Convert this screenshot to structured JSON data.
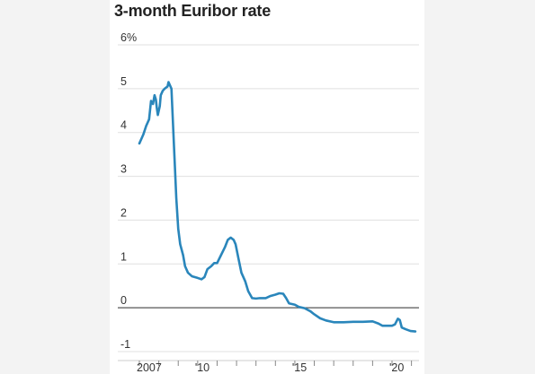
{
  "chart_data": {
    "type": "line",
    "title": "3-month Euribor rate",
    "xlabel": "",
    "ylabel": "",
    "x_ticks": [
      {
        "year": 2007,
        "label": "2007"
      },
      {
        "year": 2010,
        "label": "'10"
      },
      {
        "year": 2015,
        "label": "'15"
      },
      {
        "year": 2020,
        "label": "'20"
      }
    ],
    "y_ticks": [
      {
        "value": 6,
        "label": "6%"
      },
      {
        "value": 5,
        "label": "5"
      },
      {
        "value": 4,
        "label": "4"
      },
      {
        "value": 3,
        "label": "3"
      },
      {
        "value": 2,
        "label": "2"
      },
      {
        "value": 1,
        "label": "1"
      },
      {
        "value": 0,
        "label": "0"
      },
      {
        "value": -1,
        "label": "-1"
      }
    ],
    "xlim": [
      2006.9,
      2021.4
    ],
    "ylim": [
      -1,
      6
    ],
    "grid": true,
    "legend": "none",
    "colors": {
      "line": "#2a86bb",
      "grid": "#e0e0e0",
      "zero": "#555555"
    },
    "series": [
      {
        "points": [
          [
            2007.0,
            3.75
          ],
          [
            2007.2,
            3.95
          ],
          [
            2007.35,
            4.15
          ],
          [
            2007.5,
            4.3
          ],
          [
            2007.6,
            4.72
          ],
          [
            2007.7,
            4.65
          ],
          [
            2007.78,
            4.85
          ],
          [
            2007.85,
            4.75
          ],
          [
            2007.9,
            4.55
          ],
          [
            2007.95,
            4.4
          ],
          [
            2008.05,
            4.6
          ],
          [
            2008.1,
            4.85
          ],
          [
            2008.2,
            4.95
          ],
          [
            2008.3,
            5.0
          ],
          [
            2008.45,
            5.05
          ],
          [
            2008.5,
            5.15
          ],
          [
            2008.65,
            5.0
          ],
          [
            2008.7,
            4.5
          ],
          [
            2008.8,
            3.5
          ],
          [
            2008.9,
            2.5
          ],
          [
            2009.0,
            1.8
          ],
          [
            2009.1,
            1.45
          ],
          [
            2009.25,
            1.2
          ],
          [
            2009.35,
            0.95
          ],
          [
            2009.5,
            0.8
          ],
          [
            2009.7,
            0.72
          ],
          [
            2010.0,
            0.68
          ],
          [
            2010.2,
            0.65
          ],
          [
            2010.35,
            0.7
          ],
          [
            2010.5,
            0.88
          ],
          [
            2010.7,
            0.95
          ],
          [
            2010.85,
            1.02
          ],
          [
            2011.0,
            1.02
          ],
          [
            2011.2,
            1.2
          ],
          [
            2011.4,
            1.38
          ],
          [
            2011.55,
            1.55
          ],
          [
            2011.7,
            1.6
          ],
          [
            2011.85,
            1.55
          ],
          [
            2011.95,
            1.45
          ],
          [
            2012.1,
            1.12
          ],
          [
            2012.25,
            0.8
          ],
          [
            2012.45,
            0.6
          ],
          [
            2012.6,
            0.38
          ],
          [
            2012.8,
            0.22
          ],
          [
            2013.0,
            0.21
          ],
          [
            2013.2,
            0.22
          ],
          [
            2013.5,
            0.22
          ],
          [
            2013.75,
            0.27
          ],
          [
            2014.0,
            0.3
          ],
          [
            2014.2,
            0.33
          ],
          [
            2014.4,
            0.32
          ],
          [
            2014.55,
            0.22
          ],
          [
            2014.7,
            0.1
          ],
          [
            2014.9,
            0.08
          ],
          [
            2015.0,
            0.07
          ],
          [
            2015.2,
            0.02
          ],
          [
            2015.5,
            -0.01
          ],
          [
            2015.8,
            -0.08
          ],
          [
            2016.0,
            -0.15
          ],
          [
            2016.3,
            -0.24
          ],
          [
            2016.6,
            -0.29
          ],
          [
            2017.0,
            -0.33
          ],
          [
            2017.5,
            -0.33
          ],
          [
            2018.0,
            -0.32
          ],
          [
            2018.5,
            -0.32
          ],
          [
            2019.0,
            -0.31
          ],
          [
            2019.3,
            -0.36
          ],
          [
            2019.5,
            -0.41
          ],
          [
            2019.8,
            -0.41
          ],
          [
            2020.0,
            -0.41
          ],
          [
            2020.15,
            -0.38
          ],
          [
            2020.3,
            -0.25
          ],
          [
            2020.4,
            -0.28
          ],
          [
            2020.5,
            -0.45
          ],
          [
            2020.7,
            -0.49
          ],
          [
            2020.95,
            -0.53
          ],
          [
            2021.2,
            -0.54
          ]
        ]
      }
    ]
  }
}
